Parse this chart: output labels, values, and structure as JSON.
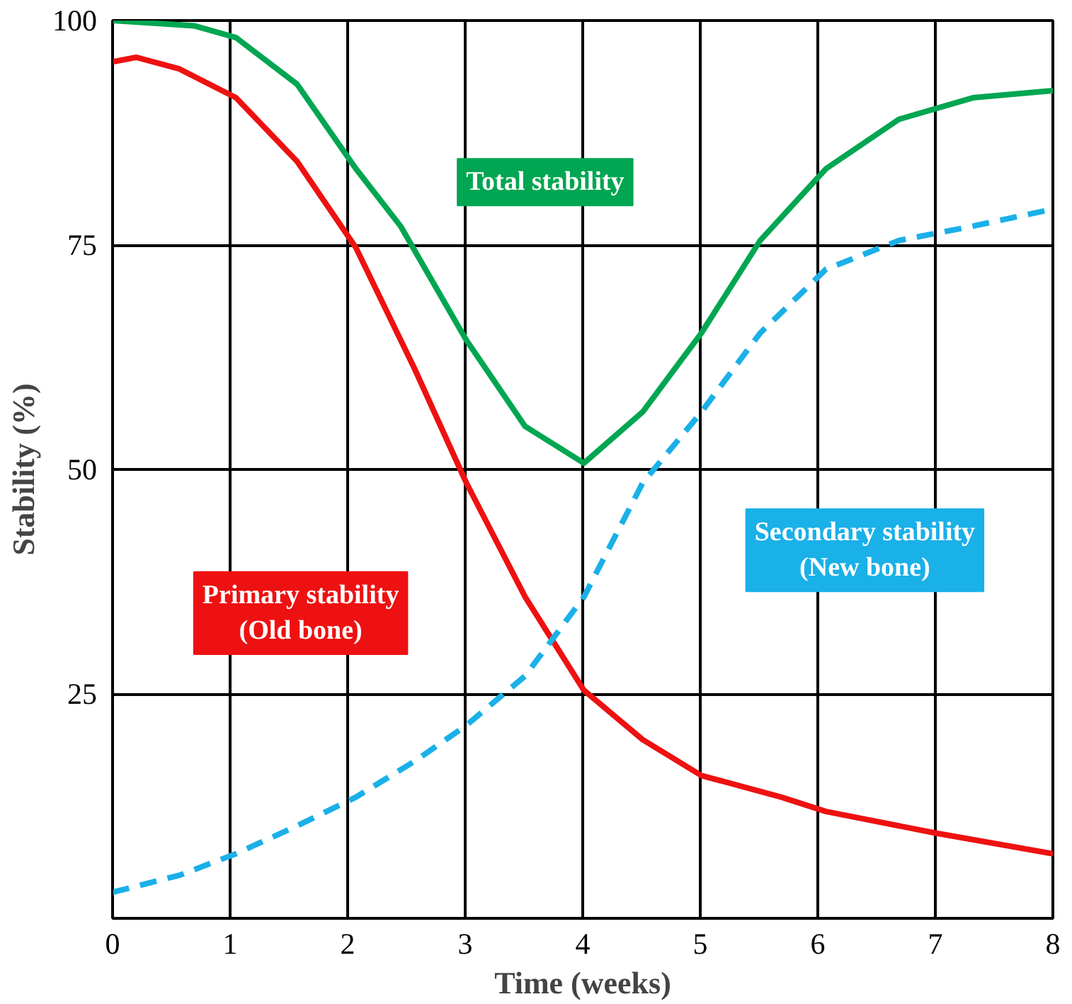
{
  "chart_data": {
    "type": "line",
    "xlabel": "Time (weeks)",
    "ylabel": "Stability (%)",
    "xlim": [
      0,
      8
    ],
    "ylim": [
      0,
      100
    ],
    "xticks": [
      0,
      1,
      2,
      3,
      4,
      5,
      6,
      7,
      8
    ],
    "yticks": [
      25,
      50,
      75,
      100
    ],
    "grid": true,
    "marker": "none",
    "series": [
      {
        "name": "Total stability",
        "color": "#00a651",
        "line_style": "solid",
        "x": [
          0,
          0.7,
          1.05,
          1.57,
          2.07,
          2.45,
          3.01,
          3.51,
          4.01,
          4.51,
          5.01,
          5.51,
          6.07,
          6.69,
          7.32,
          8.0
        ],
        "values": [
          100,
          99.4,
          98.1,
          92.9,
          83.5,
          77.1,
          64.4,
          54.8,
          50.7,
          56.4,
          65.2,
          75.5,
          83.5,
          89,
          91.4,
          92.2
        ]
      },
      {
        "name": "Primary stability\n(Old bone)",
        "color": "#ee1111",
        "line_style": "solid",
        "x": [
          0,
          0.2,
          0.57,
          1.05,
          1.57,
          2.07,
          2.57,
          3.01,
          3.51,
          4.01,
          4.51,
          5.01,
          5.69,
          6.07,
          7.0,
          8.0
        ],
        "values": [
          95.4,
          95.9,
          94.6,
          91.4,
          84.3,
          74.7,
          61.2,
          48.5,
          35.8,
          25.4,
          19.9,
          15.9,
          13.5,
          11.9,
          9.5,
          7.2
        ]
      },
      {
        "name": "Secondary stability\n(New bone)",
        "color": "#1ab0e8",
        "line_style": "dashed",
        "x": [
          0,
          0.57,
          1.05,
          1.57,
          2.07,
          2.57,
          3.01,
          3.51,
          4.01,
          4.51,
          5.01,
          5.51,
          6.07,
          6.69,
          7.32,
          8.0
        ],
        "values": [
          2.9,
          4.8,
          7.2,
          10.3,
          13.5,
          17.5,
          21.5,
          27,
          35.8,
          48.5,
          56.4,
          65.2,
          72.3,
          75.5,
          77.1,
          79
        ]
      }
    ]
  }
}
